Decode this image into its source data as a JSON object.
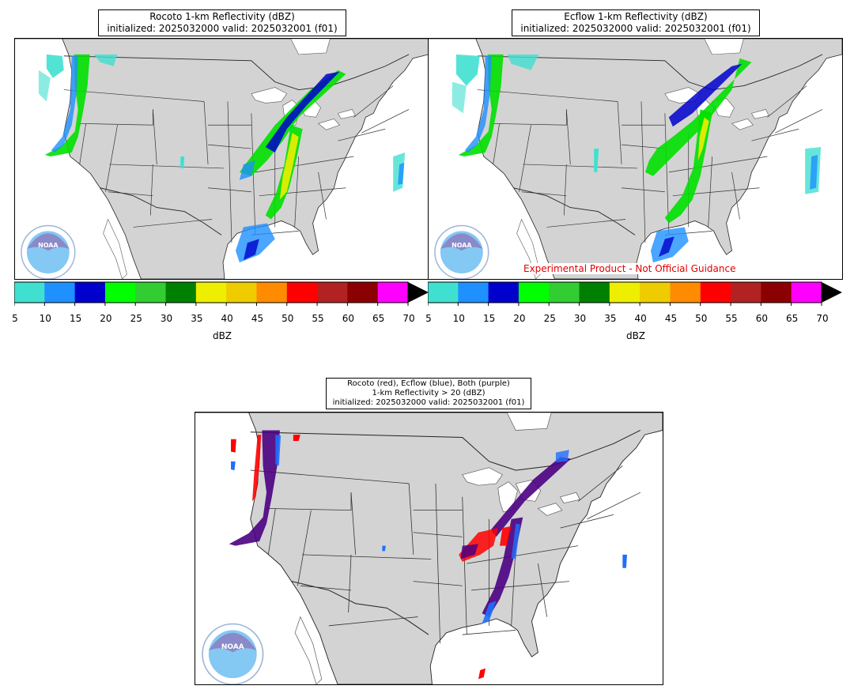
{
  "panels": {
    "rocoto": {
      "title_line1": "Rocoto 1-km Reflectivity (dBZ)",
      "title_line2": "initialized: 2025032000 valid: 2025032001 (f01)"
    },
    "ecflow": {
      "title_line1": "Ecflow 1-km Reflectivity (dBZ)",
      "title_line2": "initialized: 2025032000 valid: 2025032001 (f01)"
    },
    "diff": {
      "title_line1": "Rocoto (red), Ecflow (blue), Both (purple)",
      "title_line2": "1-km Reflectivity > 20 (dBZ)",
      "title_line3": "initialized: 2025032000 valid: 2025032001 (f01)"
    }
  },
  "colorbar": {
    "label": "dBZ",
    "ticks": [
      "5",
      "10",
      "15",
      "20",
      "25",
      "30",
      "35",
      "40",
      "45",
      "50",
      "55",
      "60",
      "65",
      "70"
    ],
    "colors": [
      "#40e0d0",
      "#1e90ff",
      "#0000cd",
      "#00ff00",
      "#32cd32",
      "#008000",
      "#eeee00",
      "#eecc00",
      "#ff8c00",
      "#ff0000",
      "#b22222",
      "#8b0000",
      "#ff00ff"
    ],
    "extend_color": "#000000"
  },
  "experimental_notice": "Experimental Product - Not Official Guidance",
  "logo": {
    "text": "NOAA",
    "ring_text": "NATIONAL OCEANIC AND ATMOSPHERIC ADMINISTRATION · U.S. DEPARTMENT OF COMMERCE"
  },
  "colors": {
    "land": "#d3d3d3",
    "water": "#ffffff",
    "border": "#333333",
    "rocoto": "#ff0000",
    "ecflow": "#1e6fff",
    "both": "#4b0082"
  }
}
